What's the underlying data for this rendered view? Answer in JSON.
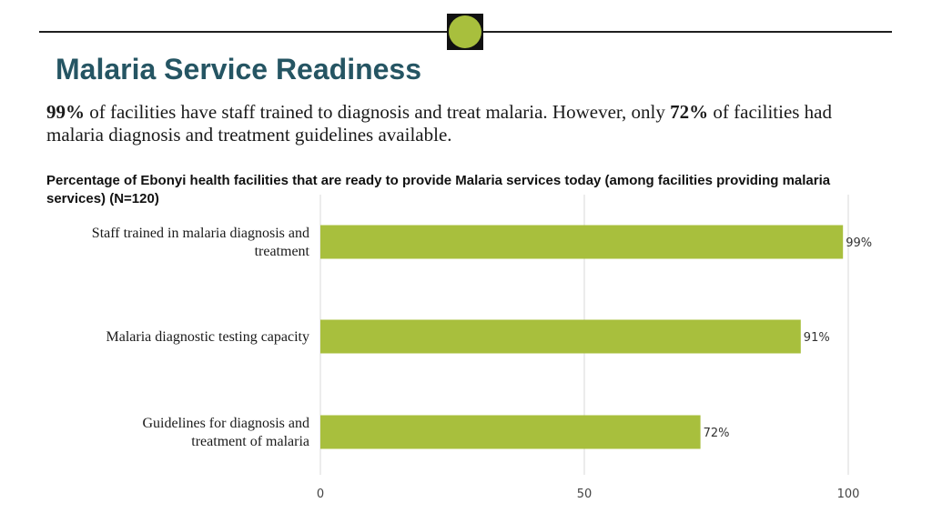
{
  "slide": {
    "title": "Malaria Service Readiness",
    "lead": {
      "part1_bold": "99%",
      "part2": " of facilities have staff trained to diagnosis and treat malaria. However, only ",
      "part3_bold": "72%",
      "part4": " of facilities had malaria diagnosis and treatment guidelines available."
    },
    "logo_color": "#a8bf3d"
  },
  "chart_data": {
    "type": "bar",
    "orientation": "horizontal",
    "title": "Percentage of Ebonyi health facilities that are ready to provide Malaria services today (among facilities providing malaria services) (N=120)",
    "categories": [
      [
        "Staff trained in malaria diagnosis and",
        "treatment"
      ],
      [
        "Malaria diagnostic testing capacity"
      ],
      [
        "Guidelines for diagnosis and",
        "treatment of malaria"
      ]
    ],
    "values": [
      99,
      91,
      72
    ],
    "value_labels": [
      "99%",
      "91%",
      "72%"
    ],
    "xlim": [
      0,
      100
    ],
    "xticks": [
      0,
      50,
      100
    ],
    "xtick_labels": [
      "0",
      "50",
      "100"
    ],
    "grid": true,
    "bar_color": "#a8bf3d",
    "grid_color": "#d9d9d9"
  }
}
